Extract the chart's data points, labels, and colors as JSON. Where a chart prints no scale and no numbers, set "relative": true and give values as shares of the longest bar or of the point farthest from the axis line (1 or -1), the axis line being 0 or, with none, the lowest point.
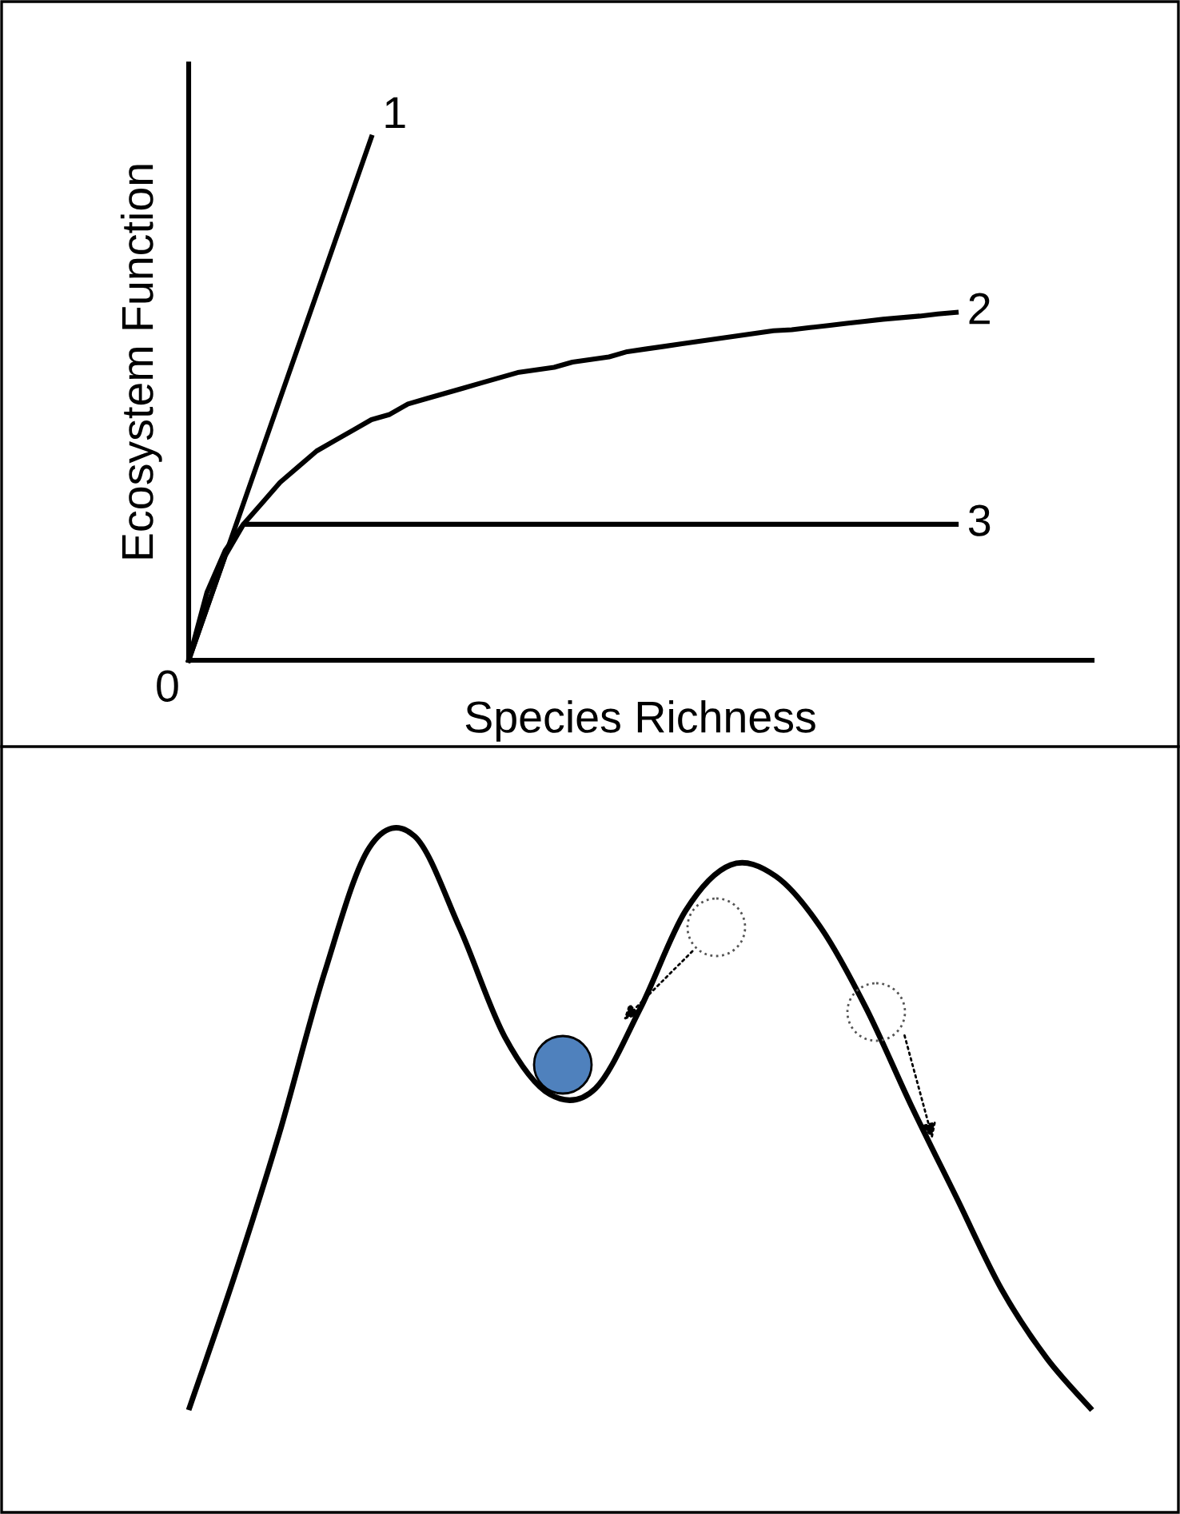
{
  "chart_data": [
    {
      "type": "line",
      "relative": true,
      "xlabel": "Species Richness",
      "ylabel": "Ecosystem Function",
      "annotations": [
        "0"
      ],
      "tick_labels": false,
      "grid": false,
      "legend": false,
      "marker": "none",
      "line_style": "solid",
      "categories": [
        null,
        null,
        null,
        null,
        null,
        null,
        null,
        null,
        null,
        null,
        null,
        null,
        null,
        null,
        null,
        null,
        null,
        null,
        null,
        null,
        null,
        null,
        null,
        null,
        null,
        null,
        null,
        null,
        null,
        null,
        null,
        null,
        null,
        null,
        null,
        null,
        null,
        null,
        null,
        null,
        null,
        null,
        null
      ],
      "series": [
        {
          "name": "1",
          "color": "#000000",
          "values": [
            0,
            0.1,
            0.2,
            0.3,
            0.4,
            0.5,
            0.6,
            0.7,
            0.8,
            0.9,
            1,
            null,
            null,
            null,
            null,
            null,
            null,
            null,
            null,
            null,
            null,
            null,
            null,
            null,
            null,
            null,
            null,
            null,
            null,
            null,
            null,
            null,
            null,
            null,
            null,
            null,
            null,
            null,
            null,
            null,
            null,
            null,
            null
          ]
        },
        {
          "name": "2",
          "color": "#000000",
          "values": [
            0,
            0.13,
            0.21,
            0.26,
            0.3,
            0.34,
            0.37,
            0.4,
            0.42,
            0.44,
            0.46,
            0.47,
            0.49,
            0.5,
            0.51,
            0.52,
            0.53,
            0.54,
            0.55,
            0.555,
            0.56,
            0.57,
            0.575,
            0.58,
            0.59,
            0.595,
            0.6,
            0.605,
            0.61,
            0.615,
            0.62,
            0.625,
            0.63,
            0.632,
            0.636,
            0.64,
            0.644,
            0.648,
            0.652,
            0.655,
            0.658,
            0.662,
            0.665
          ]
        },
        {
          "name": "3",
          "color": "#000000",
          "values": [
            0,
            0.1,
            0.2,
            0.26,
            0.26,
            0.26,
            0.26,
            0.26,
            0.26,
            0.26,
            0.26,
            0.26,
            0.26,
            0.26,
            0.26,
            0.26,
            0.26,
            0.26,
            0.26,
            0.26,
            0.26,
            0.26,
            0.26,
            0.26,
            0.26,
            0.26,
            0.26,
            0.26,
            0.26,
            0.26,
            0.26,
            0.26,
            0.26,
            0.26,
            0.26,
            0.26,
            0.26,
            0.26,
            0.26,
            0.26,
            0.26,
            0.26,
            0.26
          ]
        }
      ]
    },
    {
      "type": "line",
      "relative": true,
      "tick_labels": false,
      "grid": false,
      "legend": false,
      "marker": "none",
      "line_style": "solid",
      "categories": [
        null,
        null,
        null,
        null,
        null,
        null,
        null,
        null,
        null,
        null,
        null,
        null,
        null,
        null,
        null,
        null,
        null,
        null,
        null,
        null,
        null
      ],
      "series": [
        {
          "color": "#000000",
          "values": [
            0,
            0.23,
            0.48,
            0.76,
            0.98,
            1,
            0.84,
            0.65,
            0.55,
            0.56,
            0.7,
            0.87,
            0.95,
            0.93,
            0.84,
            0.7,
            0.53,
            0.37,
            0.21,
            0.09,
            0
          ]
        }
      ]
    }
  ]
}
